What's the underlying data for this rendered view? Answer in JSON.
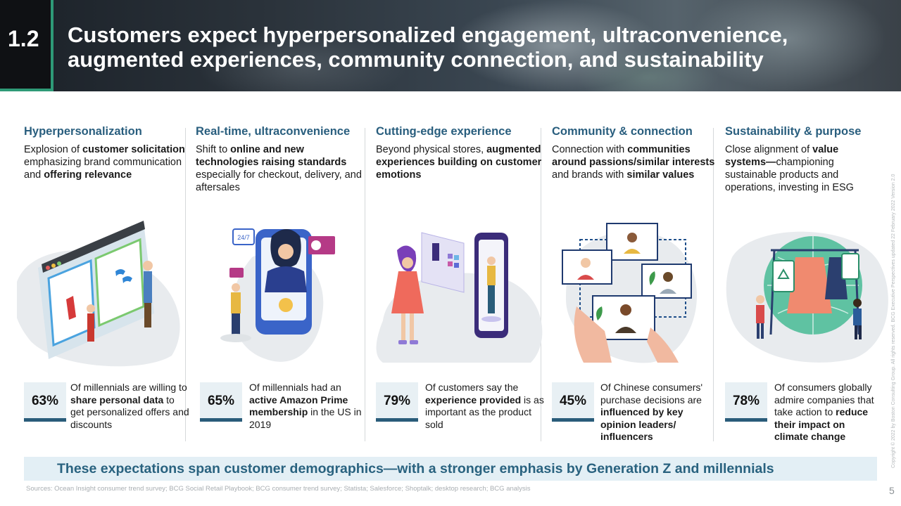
{
  "header": {
    "section_number": "1.2",
    "title_line1": "Customers expect hyperpersonalized engagement, ultraconvenience,",
    "title_line2": "augmented experiences, community connection, and sustainability"
  },
  "columns": [
    {
      "heading": "Hyperpersonalization",
      "desc": [
        {
          "t": "Explosion of ",
          "b": false
        },
        {
          "t": "customer solicitation",
          "b": true
        },
        {
          "t": " emphasizing brand communication and ",
          "b": false
        },
        {
          "t": "offering relevance",
          "b": true
        }
      ],
      "illustration": "online-shopping-illustration",
      "stat_value": "63%",
      "stat_text": [
        {
          "t": "Of millennials are willing to ",
          "b": false
        },
        {
          "t": "share personal data",
          "b": true
        },
        {
          "t": " to get personalized offers and discounts",
          "b": false
        }
      ]
    },
    {
      "heading": "Real-time, ultraconvenience",
      "desc": [
        {
          "t": "Shift to ",
          "b": false
        },
        {
          "t": "online and new technologies raising standards",
          "b": true
        },
        {
          "t": " especially for checkout, delivery, and aftersales",
          "b": false
        }
      ],
      "illustration": "phone-support-illustration",
      "phone_badge": "24/7",
      "stat_value": "65%",
      "stat_text": [
        {
          "t": "Of millennials had an ",
          "b": false
        },
        {
          "t": "active Amazon Prime membership",
          "b": true
        },
        {
          "t": " in the US in 2019",
          "b": false
        }
      ]
    },
    {
      "heading": "Cutting-edge experience",
      "desc": [
        {
          "t": "Beyond physical stores, ",
          "b": false
        },
        {
          "t": "augmented experiences building on customer emotions",
          "b": true
        }
      ],
      "illustration": "ar-fitting-illustration",
      "stat_value": "79%",
      "stat_text": [
        {
          "t": "Of customers say the ",
          "b": false
        },
        {
          "t": "experience provided",
          "b": true
        },
        {
          "t": " is as important as the product sold",
          "b": false
        }
      ]
    },
    {
      "heading": "Community & connection",
      "desc": [
        {
          "t": "Connection with ",
          "b": false
        },
        {
          "t": "communities around passions/similar interests",
          "b": true
        },
        {
          "t": " and brands with ",
          "b": false
        },
        {
          "t": "similar values",
          "b": true
        }
      ],
      "illustration": "video-community-illustration",
      "stat_value": "45%",
      "stat_text": [
        {
          "t": "Of Chinese consumers' purchase decisions are ",
          "b": false
        },
        {
          "t": "influenced by key opinion leaders/ influencers",
          "b": true
        }
      ]
    },
    {
      "heading": "Sustainability & purpose",
      "desc": [
        {
          "t": "Close alignment of ",
          "b": false
        },
        {
          "t": "value systems—",
          "b": true
        },
        {
          "t": "championing sustainable products and operations, investing in ESG",
          "b": false
        }
      ],
      "illustration": "sustainable-fashion-illustration",
      "stat_value": "78%",
      "stat_text": [
        {
          "t": "Of consumers globally admire companies that take action to ",
          "b": false
        },
        {
          "t": "reduce their impact on climate change",
          "b": true
        }
      ]
    }
  ],
  "bottom_banner": "These expectations span customer demographics—with a stronger emphasis by Generation Z and millennials",
  "sources": "Sources: Ocean Insight consumer trend survey; BCG Social Retail Playbook; BCG consumer trend survey; Statista; Salesforce; Shoptalk; desktop research; BCG analysis",
  "copyright": "Copyright © 2022 by Boston Consulting Group. All rights reserved. BCG Executive Perspectives updated 22 February 2022 Version 2.0",
  "page_number": "5",
  "colors": {
    "heading": "#295e7e",
    "accent": "#2e9a77",
    "stat_box": "#e8f0f4",
    "stat_bar": "#2a5c7a",
    "bottom_bar": "#e3eff5"
  }
}
